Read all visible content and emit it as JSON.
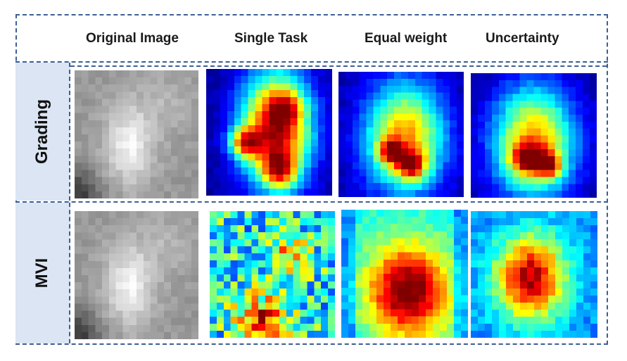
{
  "columns": [
    {
      "label": "Original Image"
    },
    {
      "label": "Single Task"
    },
    {
      "label": "Equal weight"
    },
    {
      "label": "Uncertainty"
    }
  ],
  "rows": [
    {
      "label": "Grading"
    },
    {
      "label": "MVI"
    }
  ],
  "colors": {
    "frame_border": "#3c5f94",
    "row_label_bg": "#dbe5f3",
    "heatmap_background": "#00007f"
  },
  "panels": [
    {
      "row": "Grading",
      "column": "Original Image",
      "kind": "grayscale-ct"
    },
    {
      "row": "Grading",
      "column": "Single Task",
      "kind": "heatmap"
    },
    {
      "row": "Grading",
      "column": "Equal weight",
      "kind": "heatmap"
    },
    {
      "row": "Grading",
      "column": "Uncertainty",
      "kind": "heatmap"
    },
    {
      "row": "MVI",
      "column": "Original Image",
      "kind": "grayscale-ct"
    },
    {
      "row": "MVI",
      "column": "Single Task",
      "kind": "heatmap"
    },
    {
      "row": "MVI",
      "column": "Equal weight",
      "kind": "heatmap"
    },
    {
      "row": "MVI",
      "column": "Uncertainty",
      "kind": "heatmap"
    }
  ]
}
